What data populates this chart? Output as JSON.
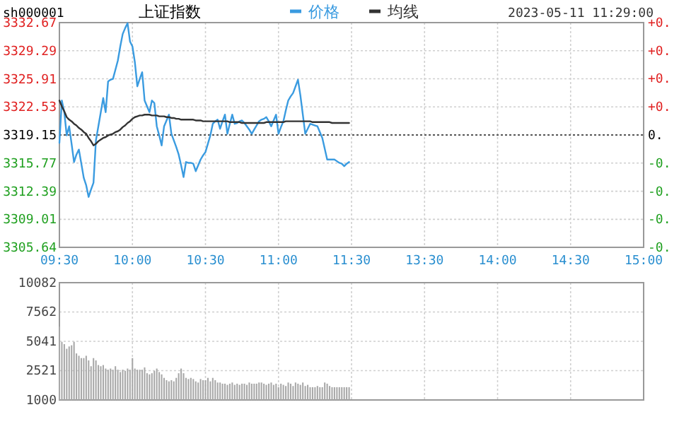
{
  "chart_data": [
    {
      "type": "line",
      "title": "上证指数",
      "subtitle": "sh000001",
      "annotations": [
        "2023-05-11 11:29:00"
      ],
      "legend": "top",
      "grid": true,
      "categories": [
        "09:30",
        null,
        null,
        null,
        null,
        null,
        null,
        null,
        null,
        null,
        null,
        null,
        null,
        null,
        null,
        null,
        null,
        null,
        null,
        null,
        null,
        null,
        null,
        null,
        null,
        null,
        null,
        null,
        null,
        null,
        "10:00",
        null,
        null,
        null,
        null,
        null,
        null,
        null,
        null,
        null,
        null,
        null,
        null,
        null,
        null,
        null,
        null,
        null,
        null,
        null,
        null,
        null,
        null,
        null,
        null,
        null,
        null,
        null,
        null,
        null,
        "10:30",
        null,
        null,
        null,
        null,
        null,
        null,
        null,
        null,
        null,
        null,
        null,
        null,
        null,
        null,
        null,
        null,
        null,
        null,
        null,
        null,
        null,
        null,
        null,
        null,
        null,
        null,
        null,
        null,
        null,
        "11:00",
        null,
        null,
        null,
        null,
        null,
        null,
        null,
        null,
        null,
        null,
        null,
        null,
        null,
        null,
        null,
        null,
        null,
        null,
        null,
        null,
        null,
        null,
        null,
        null,
        null,
        null,
        null,
        null,
        null,
        "11:30",
        null,
        null,
        null,
        null,
        null,
        null,
        null,
        null,
        null,
        null,
        null,
        null,
        null,
        null,
        null,
        null,
        null,
        null,
        null,
        null,
        null,
        null,
        null,
        null,
        null,
        null,
        null,
        null,
        null,
        "13:30",
        null,
        null,
        null,
        null,
        null,
        null,
        null,
        null,
        null,
        null,
        null,
        null,
        null,
        null,
        null,
        null,
        null,
        null,
        null,
        null,
        null,
        null,
        null,
        null,
        null,
        null,
        null,
        null,
        null,
        "14:00",
        null,
        null,
        null,
        null,
        null,
        null,
        null,
        null,
        null,
        null,
        null,
        null,
        null,
        null,
        null,
        null,
        null,
        null,
        null,
        null,
        null,
        null,
        null,
        null,
        null,
        null,
        null,
        null,
        null,
        "14:30",
        null,
        null,
        null,
        null,
        null,
        null,
        null,
        null,
        null,
        null,
        null,
        null,
        null,
        null,
        null,
        null,
        null,
        null,
        null,
        null,
        null,
        null,
        null,
        null,
        null,
        null,
        null,
        null,
        null,
        "15:00"
      ],
      "ylim": [
        3305.64,
        3332.67
      ],
      "yticks": [
        3332.67,
        3329.29,
        3325.91,
        3322.53,
        3319.15,
        3315.77,
        3312.39,
        3309.01,
        3305.64
      ],
      "y2lim": [
        -0.407,
        0.407
      ],
      "y2ticks": [
        {
          "value": 0.407,
          "label": "+0."
        },
        {
          "value": 0.305,
          "label": "+0."
        },
        {
          "value": 0.204,
          "label": "+0."
        },
        {
          "value": 0.102,
          "label": "+0."
        },
        {
          "value": 0,
          "label": "0."
        },
        {
          "value": -0.102,
          "label": "-0."
        },
        {
          "value": -0.204,
          "label": "-0."
        },
        {
          "value": -0.305,
          "label": "-0."
        },
        {
          "value": -0.407,
          "label": "-0."
        }
      ],
      "ref_lines": [
        {
          "axis": "y",
          "value": 3319.15,
          "color": "#555555",
          "line_style": "dotted"
        }
      ],
      "series": [
        {
          "name": "价格",
          "color": "#3a9be0",
          "values": [
            3318.2,
            3323.3,
            3321.9,
            3319.1,
            3320.2,
            3318.1,
            3315.9,
            3316.8,
            3317.4,
            3315.7,
            3314.0,
            3313.1,
            3311.7,
            3312.6,
            3313.4,
            3318.5,
            3320.2,
            3321.9,
            3323.6,
            3321.9,
            3325.6,
            3325.8,
            3325.9,
            3327.0,
            3328.1,
            3329.8,
            3331.3,
            3332.0,
            3332.6,
            3330.4,
            3329.8,
            3327.9,
            3325.0,
            3325.9,
            3326.7,
            3323.3,
            3322.6,
            3321.9,
            3323.3,
            3323.0,
            3320.2,
            3319.1,
            3317.9,
            3320.2,
            3320.9,
            3321.6,
            3319.3,
            3318.5,
            3317.7,
            3316.8,
            3315.5,
            3314.1,
            3315.9,
            3315.8,
            3315.8,
            3315.7,
            3314.8,
            3315.5,
            3316.2,
            3316.7,
            3317.1,
            3318.1,
            3319.1,
            3320.5,
            3320.8,
            3321.0,
            3319.9,
            3320.8,
            3321.6,
            3319.3,
            3320.5,
            3321.6,
            3320.5,
            3320.6,
            3320.8,
            3320.9,
            3320.6,
            3320.2,
            3319.8,
            3319.3,
            3319.8,
            3320.3,
            3320.8,
            3321.0,
            3321.1,
            3321.3,
            3320.8,
            3320.2,
            3320.9,
            3321.6,
            3319.3,
            3320.1,
            3320.8,
            3322.1,
            3323.3,
            3323.8,
            3324.2,
            3325.0,
            3325.8,
            3323.9,
            3321.6,
            3319.3,
            3319.9,
            3320.5,
            3320.4,
            3320.3,
            3320.2,
            3319.5,
            3318.8,
            3317.5,
            3316.2,
            3316.2,
            3316.2,
            3316.2,
            3316.0,
            3315.8,
            3315.7,
            3315.4,
            3315.7,
            3315.9,
            null,
            null,
            null,
            null,
            null,
            null,
            null,
            null,
            null,
            null,
            null,
            null,
            null,
            null,
            null,
            null,
            null,
            null,
            null,
            null,
            null,
            null,
            null,
            null,
            null,
            null,
            null,
            null,
            null,
            null,
            null,
            null,
            null,
            null,
            null,
            null,
            null,
            null,
            null,
            null,
            null,
            null,
            null,
            null,
            null,
            null,
            null,
            null,
            null,
            null,
            null,
            null,
            null,
            null,
            null,
            null,
            null,
            null,
            null,
            null,
            null,
            null,
            null,
            null,
            null,
            null,
            null,
            null,
            null,
            null,
            null,
            null,
            null,
            null,
            null,
            null,
            null,
            null,
            null,
            null,
            null,
            null,
            null,
            null,
            null,
            null,
            null,
            null,
            null,
            null,
            null,
            null,
            null,
            null,
            null,
            null,
            null,
            null,
            null,
            null,
            null,
            null,
            null,
            null,
            null,
            null,
            null,
            null,
            null,
            null,
            null,
            null,
            null,
            null,
            null,
            null,
            null,
            null,
            null,
            null,
            null
          ]
        },
        {
          "name": "均线",
          "color": "#333333",
          "values": [
            3323.3,
            3322.6,
            3322.0,
            3321.3,
            3321.0,
            3320.8,
            3320.5,
            3320.3,
            3320.0,
            3319.8,
            3319.5,
            3319.3,
            3318.8,
            3318.4,
            3317.9,
            3318.1,
            3318.4,
            3318.6,
            3318.8,
            3318.9,
            3319.1,
            3319.2,
            3319.3,
            3319.5,
            3319.6,
            3319.8,
            3320.1,
            3320.3,
            3320.6,
            3320.8,
            3321.1,
            3321.3,
            3321.4,
            3321.5,
            3321.5,
            3321.6,
            3321.6,
            3321.6,
            3321.5,
            3321.5,
            3321.5,
            3321.4,
            3321.4,
            3321.4,
            3321.3,
            3321.3,
            3321.2,
            3321.2,
            3321.1,
            3321.1,
            3321.0,
            3321.0,
            3321.0,
            3321.0,
            3321.0,
            3321.0,
            3320.9,
            3320.9,
            3320.9,
            3320.8,
            3320.8,
            3320.8,
            3320.8,
            3320.8,
            3320.8,
            3320.8,
            3320.8,
            3320.8,
            3320.8,
            3320.8,
            3320.7,
            3320.7,
            3320.7,
            3320.7,
            3320.7,
            3320.6,
            3320.6,
            3320.6,
            3320.6,
            3320.6,
            3320.6,
            3320.6,
            3320.6,
            3320.6,
            3320.6,
            3320.7,
            3320.7,
            3320.7,
            3320.7,
            3320.7,
            3320.7,
            3320.7,
            3320.7,
            3320.8,
            3320.8,
            3320.8,
            3320.8,
            3320.8,
            3320.8,
            3320.8,
            3320.8,
            3320.8,
            3320.8,
            3320.8,
            3320.7,
            3320.7,
            3320.7,
            3320.7,
            3320.7,
            3320.7,
            3320.7,
            3320.7,
            3320.6,
            3320.6,
            3320.6,
            3320.6,
            3320.6,
            3320.6,
            3320.6,
            3320.6,
            null,
            null,
            null,
            null,
            null,
            null,
            null,
            null,
            null,
            null,
            null,
            null,
            null,
            null,
            null,
            null,
            null,
            null,
            null,
            null,
            null,
            null,
            null,
            null,
            null,
            null,
            null,
            null,
            null,
            null,
            null,
            null,
            null,
            null,
            null,
            null,
            null,
            null,
            null,
            null,
            null,
            null,
            null,
            null,
            null,
            null,
            null,
            null,
            null,
            null,
            null,
            null,
            null,
            null,
            null,
            null,
            null,
            null,
            null,
            null,
            null,
            null,
            null,
            null,
            null,
            null,
            null,
            null,
            null,
            null,
            null,
            null,
            null,
            null,
            null,
            null,
            null,
            null,
            null,
            null,
            null,
            null,
            null,
            null,
            null,
            null,
            null,
            null,
            null,
            null,
            null,
            null,
            null,
            null,
            null,
            null,
            null,
            null,
            null,
            null,
            null,
            null,
            null,
            null,
            null,
            null,
            null,
            null,
            null,
            null,
            null,
            null,
            null,
            null,
            null,
            null,
            null,
            null,
            null,
            null,
            null
          ]
        }
      ]
    },
    {
      "type": "bar",
      "grid": true,
      "tick_labels": "y",
      "color": "#a8a8a8",
      "ylabel": "1000",
      "categories": [
        null,
        null,
        null,
        null,
        null,
        null,
        null,
        null,
        null,
        null,
        null,
        null,
        null,
        null,
        null,
        null,
        null,
        null,
        null,
        null,
        null,
        null,
        null,
        null,
        null,
        null,
        null,
        null,
        null,
        null,
        null,
        null,
        null,
        null,
        null,
        null,
        null,
        null,
        null,
        null,
        null,
        null,
        null,
        null,
        null,
        null,
        null,
        null,
        null,
        null,
        null,
        null,
        null,
        null,
        null,
        null,
        null,
        null,
        null,
        null,
        null,
        null,
        null,
        null,
        null,
        null,
        null,
        null,
        null,
        null,
        null,
        null,
        null,
        null,
        null,
        null,
        null,
        null,
        null,
        null,
        null,
        null,
        null,
        null,
        null,
        null,
        null,
        null,
        null,
        null,
        null,
        null,
        null,
        null,
        null,
        null,
        null,
        null,
        null,
        null,
        null,
        null,
        null,
        null,
        null,
        null,
        null,
        null,
        null,
        null,
        null,
        null,
        null,
        null,
        null,
        null,
        null,
        null,
        null,
        null,
        null,
        null,
        null,
        null,
        null,
        null,
        null,
        null,
        null,
        null,
        null,
        null,
        null,
        null,
        null,
        null,
        null,
        null,
        null,
        null,
        null,
        null,
        null,
        null,
        null,
        null,
        null,
        null,
        null,
        null,
        null,
        null,
        null,
        null,
        null,
        null,
        null,
        null,
        null,
        null,
        null,
        null,
        null,
        null,
        null,
        null,
        null,
        null,
        null,
        null,
        null,
        null,
        null,
        null,
        null,
        null,
        null,
        null,
        null,
        null,
        null,
        null,
        null,
        null,
        null,
        null,
        null,
        null,
        null,
        null,
        null,
        null,
        null,
        null,
        null,
        null,
        null,
        null,
        null,
        null,
        null,
        null,
        null,
        null,
        null,
        null,
        null,
        null,
        null,
        null,
        null,
        null,
        null,
        null,
        null,
        null,
        null,
        null,
        null,
        null,
        null,
        null,
        null,
        null,
        null,
        null,
        null,
        null,
        null,
        null,
        null,
        null,
        null,
        null,
        null,
        null,
        null,
        null,
        null,
        null,
        null
      ],
      "ylim": [
        0,
        10082
      ],
      "yticks": [
        10082,
        7562,
        5041,
        2521,
        {
          "value": 0,
          "label": null
        }
      ],
      "values": [
        6300,
        5000,
        4800,
        4400,
        4600,
        4700,
        5000,
        4000,
        3800,
        3600,
        3600,
        3800,
        3400,
        2900,
        3600,
        3400,
        3000,
        2900,
        3000,
        2700,
        2600,
        2700,
        2600,
        2900,
        2600,
        2400,
        2600,
        2500,
        2700,
        2600,
        3600,
        2700,
        2600,
        2600,
        2600,
        2800,
        2300,
        2200,
        2300,
        2500,
        2700,
        2400,
        2200,
        1900,
        1700,
        1600,
        1700,
        1600,
        1900,
        2300,
        2700,
        2300,
        1900,
        1800,
        1900,
        1800,
        1600,
        1500,
        1800,
        1700,
        1700,
        1900,
        1600,
        1900,
        1700,
        1500,
        1500,
        1400,
        1400,
        1300,
        1400,
        1500,
        1300,
        1400,
        1300,
        1400,
        1400,
        1300,
        1500,
        1400,
        1400,
        1400,
        1500,
        1500,
        1400,
        1300,
        1400,
        1500,
        1300,
        1400,
        1100,
        1400,
        1300,
        1200,
        1500,
        1400,
        1200,
        1500,
        1400,
        1300,
        1500,
        1200,
        1300,
        1100,
        1100,
        1100,
        1200,
        1100,
        1100,
        1500,
        1400,
        1200,
        1100,
        1100,
        1100,
        1100,
        1100,
        1100,
        1100,
        1100,
        null,
        null,
        null,
        null,
        null,
        null,
        null,
        null,
        null,
        null,
        null,
        null,
        null,
        null,
        null,
        null,
        null,
        null,
        null,
        null,
        null,
        null,
        null,
        null,
        null,
        null,
        null,
        null,
        null,
        null,
        null,
        null,
        null,
        null,
        null,
        null,
        null,
        null,
        null,
        null,
        null,
        null,
        null,
        null,
        null,
        null,
        null,
        null,
        null,
        null,
        null,
        null,
        null,
        null,
        null,
        null,
        null,
        null,
        null,
        null,
        null,
        null,
        null,
        null,
        null,
        null,
        null,
        null,
        null,
        null,
        null,
        null,
        null,
        null,
        null,
        null,
        null,
        null,
        null,
        null,
        null,
        null,
        null,
        null,
        null,
        null,
        null,
        null,
        null,
        null,
        null,
        null,
        null,
        null,
        null,
        null,
        null,
        null,
        null,
        null,
        null,
        null,
        null,
        null,
        null,
        null,
        null,
        null,
        null,
        null,
        null,
        null,
        null,
        null,
        null,
        null,
        null,
        null,
        null,
        null,
        null
      ]
    }
  ]
}
